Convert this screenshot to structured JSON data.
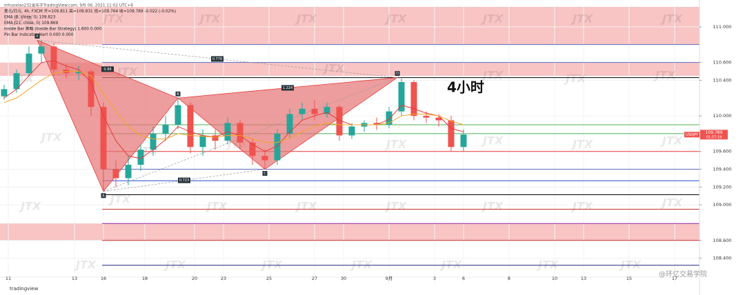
{
  "chart_data": {
    "type": "candlestick",
    "header": [
      "mhuoxiao232发布于TradingView.com, 9月 06, 2021 11:02 UTC+8",
      "美元/日元, 4h, FXCM  开=109.811 高=109.831 低=109.764 收=109.789 -0.022 (-0.02%)",
      "EMA (8, close, 0)  109.823",
      "EMA (21, close, 0)  109.869",
      "Inside Bar 策略 (Inside Bar Strategy)  1.800  0.000",
      "Pin Bar Indicator Alert  0.000  0.000"
    ],
    "annotation": "4小时",
    "watermark": "JTX",
    "logo": "tradingview",
    "credit": "@环亿交易学院",
    "xlim": [
      0,
      169
    ],
    "xticks": [
      {
        "value": 2,
        "label": "11"
      },
      {
        "value": 18,
        "label": "13"
      },
      {
        "value": 25,
        "label": "16"
      },
      {
        "value": 35,
        "label": "18"
      },
      {
        "value": 47,
        "label": "20"
      },
      {
        "value": 54,
        "label": "23"
      },
      {
        "value": 65,
        "label": "25"
      },
      {
        "value": 76,
        "label": "27"
      },
      {
        "value": 83,
        "label": "30"
      },
      {
        "value": 94,
        "label": "9月"
      },
      {
        "value": 105,
        "label": "3"
      },
      {
        "value": 112,
        "label": "6"
      },
      {
        "value": 123,
        "label": "8"
      },
      {
        "value": 134,
        "label": "10"
      },
      {
        "value": 141,
        "label": "13"
      },
      {
        "value": 152,
        "label": "15"
      },
      {
        "value": 163,
        "label": "17"
      }
    ],
    "ylim": [
      108.11,
      111.225
    ],
    "yticks": [
      {
        "value": 108.4,
        "label": "108.400"
      },
      {
        "value": 108.6,
        "label": "108.600"
      },
      {
        "value": 109,
        "label": "109.000"
      },
      {
        "value": 109.2,
        "label": "109.200"
      },
      {
        "value": 109.4,
        "label": "109.400"
      },
      {
        "value": 109.6,
        "label": "109.600"
      },
      {
        "value": 110,
        "label": "110.000"
      },
      {
        "value": 110.4,
        "label": "110.400"
      },
      {
        "value": 110.6,
        "label": "110.600"
      },
      {
        "value": 111,
        "label": "111.000"
      }
    ],
    "grid": true,
    "up_color": "#26a69a",
    "down_color": "#ef5350",
    "x": [
      1,
      4,
      7,
      10,
      13,
      16,
      19,
      22,
      25,
      28,
      31,
      34,
      37,
      40,
      43,
      46,
      49,
      52,
      55,
      58,
      61,
      64,
      67,
      70,
      73,
      76,
      79,
      82,
      85,
      88,
      91,
      94,
      97,
      100,
      103,
      106,
      109,
      112
    ],
    "open": [
      110.22,
      110.3,
      110.48,
      110.7,
      110.78,
      110.52,
      110.48,
      110.5,
      110.1,
      109.4,
      109.3,
      109.45,
      109.62,
      109.8,
      109.9,
      110.12,
      109.65,
      109.78,
      109.72,
      109.92,
      109.7,
      109.55,
      109.5,
      109.8,
      110.02,
      110.08,
      110.02,
      110.1,
      109.78,
      109.88,
      109.92,
      109.9,
      110.05,
      110.38,
      110.0,
      109.98,
      109.95,
      109.65
    ],
    "high": [
      110.35,
      110.52,
      110.78,
      110.85,
      110.82,
      110.58,
      110.56,
      110.52,
      110.15,
      109.5,
      109.55,
      109.68,
      109.88,
      110.0,
      110.2,
      110.15,
      109.85,
      109.85,
      109.98,
      109.95,
      109.75,
      109.62,
      109.85,
      110.08,
      110.15,
      110.18,
      110.15,
      110.12,
      109.92,
      109.95,
      109.98,
      110.1,
      110.42,
      110.4,
      110.05,
      110.02,
      110.0,
      109.85
    ],
    "low": [
      110.18,
      110.26,
      110.45,
      110.6,
      110.45,
      110.42,
      110.4,
      110.0,
      109.15,
      109.2,
      109.22,
      109.38,
      109.55,
      109.72,
      109.85,
      109.58,
      109.55,
      109.62,
      109.68,
      109.62,
      109.45,
      109.4,
      109.45,
      109.75,
      109.95,
      109.95,
      109.98,
      109.72,
      109.74,
      109.82,
      109.84,
      109.86,
      110.0,
      109.95,
      109.92,
      109.88,
      109.6,
      109.6
    ],
    "close": [
      110.3,
      110.48,
      110.7,
      110.78,
      110.52,
      110.48,
      110.5,
      110.1,
      109.4,
      109.3,
      109.45,
      109.62,
      109.8,
      109.9,
      110.12,
      109.65,
      109.78,
      109.72,
      109.92,
      109.7,
      109.55,
      109.5,
      109.8,
      110.02,
      110.08,
      110.02,
      110.1,
      109.78,
      109.88,
      109.92,
      109.9,
      110.05,
      110.38,
      110.0,
      109.98,
      109.95,
      109.65,
      109.79
    ],
    "series": [
      {
        "name": "EMA (8, close, 0)",
        "color": "#e53935",
        "values": [
          110.2,
          110.3,
          110.45,
          110.6,
          110.62,
          110.56,
          110.52,
          110.38,
          110.0,
          109.72,
          109.55,
          109.52,
          109.62,
          109.73,
          109.88,
          109.82,
          109.78,
          109.76,
          109.82,
          109.78,
          109.68,
          109.6,
          109.66,
          109.82,
          109.95,
          110.0,
          110.04,
          109.95,
          109.9,
          109.9,
          109.9,
          109.96,
          110.12,
          110.08,
          110.03,
          110.0,
          109.86,
          109.82
        ]
      },
      {
        "name": "EMA (21, close, 0)",
        "color": "#f5a623",
        "values": [
          110.15,
          110.2,
          110.3,
          110.4,
          110.48,
          110.5,
          110.5,
          110.45,
          110.25,
          110.05,
          109.88,
          109.78,
          109.74,
          109.74,
          109.8,
          109.78,
          109.77,
          109.76,
          109.78,
          109.78,
          109.74,
          109.7,
          109.7,
          109.75,
          109.82,
          109.88,
          109.92,
          109.9,
          109.9,
          109.9,
          109.9,
          109.92,
          110.0,
          110.02,
          110.02,
          110.0,
          109.94,
          109.9
        ]
      }
    ],
    "zones": [
      {
        "from": 110.8,
        "to": 111.225,
        "color": "#f8c4c4"
      },
      {
        "from": 110.45,
        "to": 110.6,
        "color": "#f8c4c4"
      },
      {
        "from": 108.6,
        "to": 108.79,
        "color": "#f8c4c4"
      }
    ],
    "levels": [
      {
        "value": 110.802,
        "color": "#5c6bc0"
      },
      {
        "value": 110.6,
        "color": "#5c6bc0"
      },
      {
        "value": 110.43,
        "color": "#000000"
      },
      {
        "value": 109.9,
        "color": "#4caf50"
      },
      {
        "value": 109.8,
        "color": "#4caf50"
      },
      {
        "value": 109.6,
        "color": "#e53935"
      },
      {
        "value": 109.4,
        "color": "#5c6bc0"
      },
      {
        "value": 109.27,
        "color": "#1e4bd2"
      },
      {
        "value": 109.113,
        "color": "#000000"
      },
      {
        "value": 108.95,
        "color": "#c62828"
      },
      {
        "value": 108.79,
        "color": "#8e24aa"
      },
      {
        "value": 108.6,
        "color": "#c62828"
      },
      {
        "value": 108.32,
        "color": "#1a237e"
      }
    ],
    "pattern": {
      "color": "#e57373",
      "points": [
        {
          "label": "X",
          "x": 9,
          "y": 110.85
        },
        {
          "label": "A",
          "x": 25,
          "y": 109.15
        },
        {
          "label": "B",
          "x": 43,
          "y": 110.2
        },
        {
          "label": "C",
          "x": 64,
          "y": 109.4
        },
        {
          "label": "D",
          "x": 96,
          "y": 110.43
        }
      ],
      "ratios": [
        "0.88",
        "0.776",
        "1.224",
        "0.723"
      ]
    },
    "price_tag": {
      "symbol": "USDJPY",
      "value": 109.789,
      "label": "109.789",
      "countdown": "01:57:19",
      "color": "#ef5350"
    }
  }
}
